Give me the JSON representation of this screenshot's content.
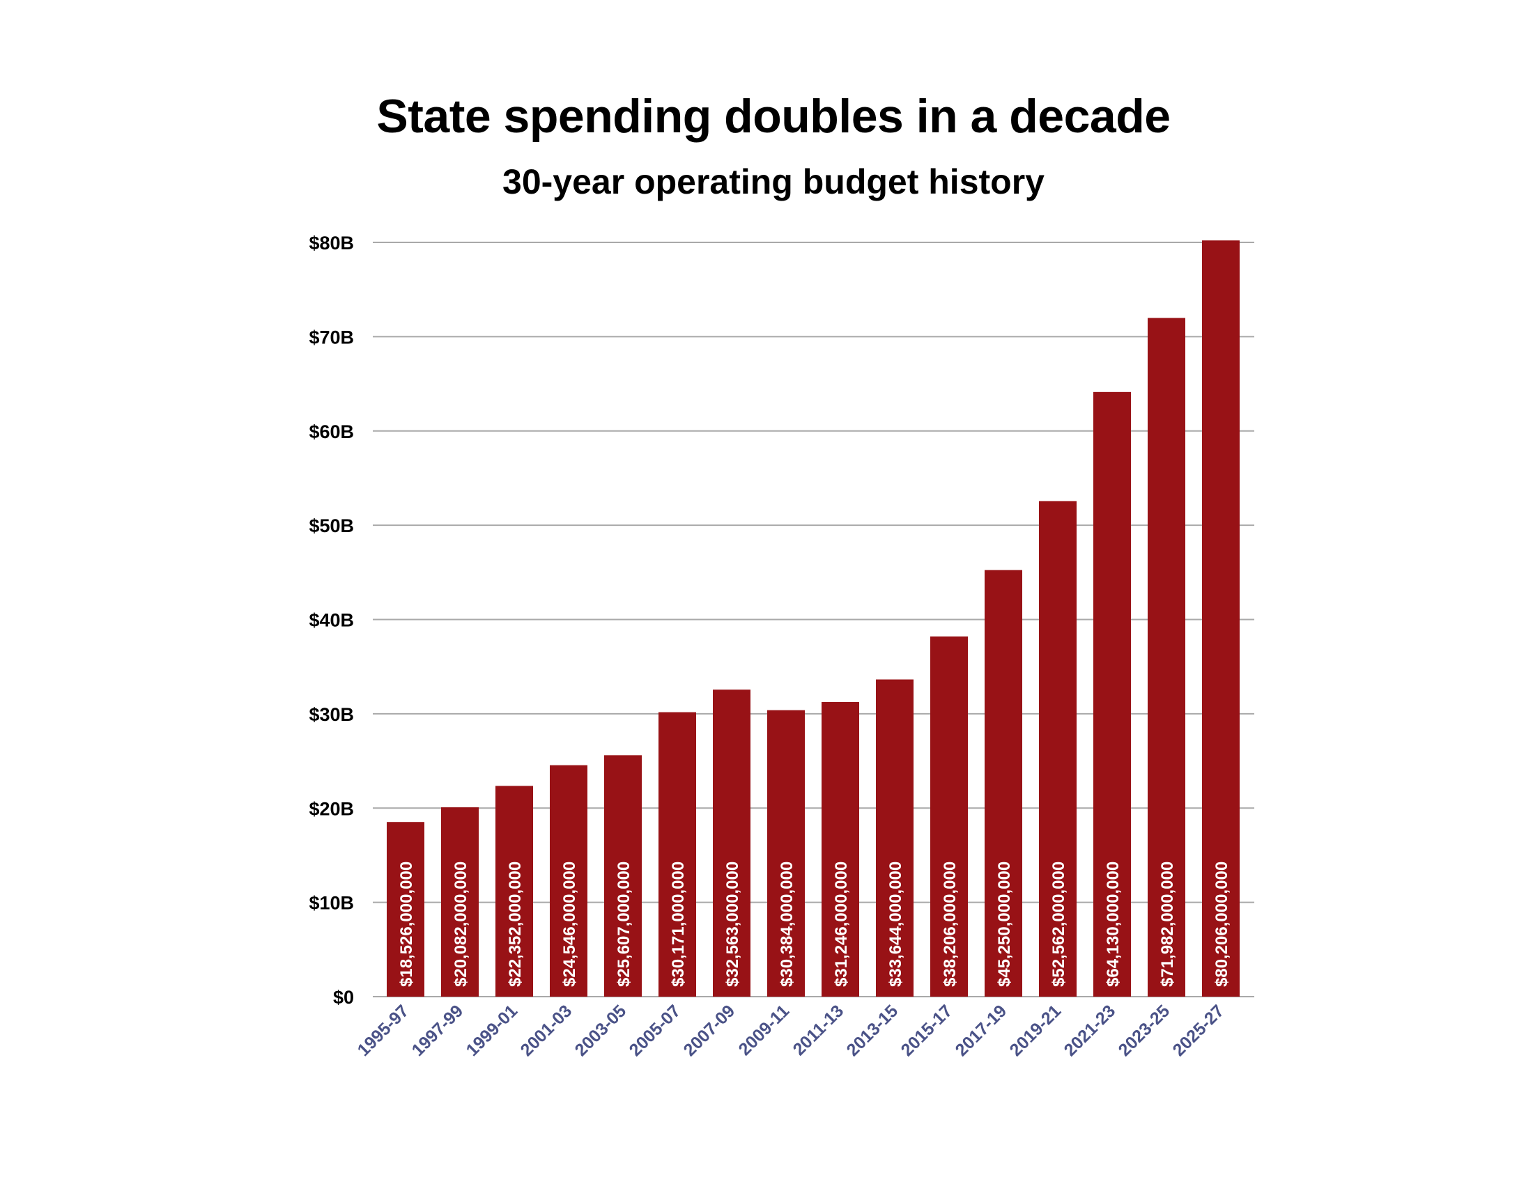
{
  "title": "State spending doubles in a decade",
  "subtitle": "30-year operating budget history",
  "colors": {
    "bar": "#981216",
    "grid": "#a9a9a9",
    "ytick": "#000000",
    "xtick": "#4a5287",
    "bar_label": "#ffffff"
  },
  "chart_data": {
    "type": "bar",
    "title": "State spending doubles in a decade",
    "subtitle": "30-year operating budget history",
    "xlabel": "",
    "ylabel": "",
    "ylim": [
      0,
      80000000000
    ],
    "grid": true,
    "legend": "none",
    "y_ticks": [
      {
        "value": 0,
        "label": "$0"
      },
      {
        "value": 10000000000,
        "label": "$10B"
      },
      {
        "value": 20000000000,
        "label": "$20B"
      },
      {
        "value": 30000000000,
        "label": "$30B"
      },
      {
        "value": 40000000000,
        "label": "$40B"
      },
      {
        "value": 50000000000,
        "label": "$50B"
      },
      {
        "value": 60000000000,
        "label": "$60B"
      },
      {
        "value": 70000000000,
        "label": "$70B"
      },
      {
        "value": 80000000000,
        "label": "$80B"
      }
    ],
    "categories": [
      "1995-97",
      "1997-99",
      "1999-01",
      "2001-03",
      "2003-05",
      "2005-07",
      "2007-09",
      "2009-11",
      "2011-13",
      "2013-15",
      "2015-17",
      "2017-19",
      "2019-21",
      "2021-23",
      "2023-25",
      "2025-27"
    ],
    "values": [
      18526000000,
      20082000000,
      22352000000,
      24546000000,
      25607000000,
      30171000000,
      32563000000,
      30384000000,
      31246000000,
      33644000000,
      38206000000,
      45250000000,
      52562000000,
      64130000000,
      71982000000,
      80206000000
    ],
    "data_labels": [
      "$18,526,000,000",
      "$20,082,000,000",
      "$22,352,000,000",
      "$24,546,000,000",
      "$25,607,000,000",
      "$30,171,000,000",
      "$32,563,000,000",
      "$30,384,000,000",
      "$31,246,000,000",
      "$33,644,000,000",
      "$38,206,000,000",
      "$45,250,000,000",
      "$52,562,000,000",
      "$64,130,000,000",
      "$71,982,000,000",
      "$80,206,000,000"
    ]
  }
}
